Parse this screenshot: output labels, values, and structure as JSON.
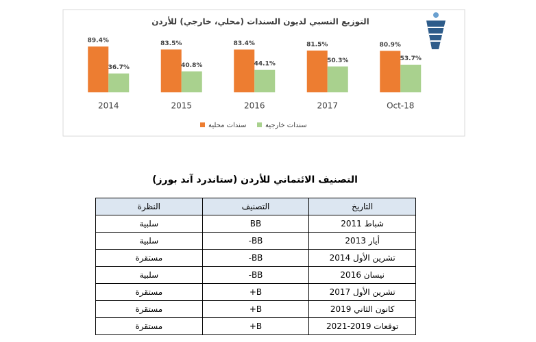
{
  "chart_data": {
    "type": "bar",
    "title": "التوزيع النسبي لديون السندات (محلي، خارجي) للأردن",
    "categories": [
      "2014",
      "2015",
      "2016",
      "2017",
      "Oct-18"
    ],
    "series": [
      {
        "name": "سندات محلية",
        "color": "#ED7D31",
        "values": [
          89.4,
          83.5,
          83.4,
          81.5,
          80.9
        ],
        "value_labels": [
          "89.4%",
          "83.5%",
          "83.4%",
          "81.5%",
          "80.9%"
        ]
      },
      {
        "name": "سندات خارجية",
        "color": "#A9D18E",
        "values": [
          36.7,
          40.8,
          44.1,
          50.3,
          53.7
        ],
        "value_labels": [
          "36.7%",
          "40.8%",
          "44.1%",
          "50.3%",
          "53.7%"
        ]
      }
    ]
  },
  "table": {
    "title": "التصنيف الائتماني للأردن (ستاندرد آند بورز)",
    "header": [
      "التاريخ",
      "التصنيف",
      "النظرة"
    ],
    "rows": [
      [
        "شباط 2011",
        "BB",
        "سلبية"
      ],
      [
        "أيار 2013",
        "BB-",
        "سلبية"
      ],
      [
        "تشرين الأول 2014",
        "BB-",
        "مستقرة"
      ],
      [
        "نيسان 2016",
        "BB-",
        "سلبية"
      ],
      [
        "تشرين الأول 2017",
        "B+",
        "مستقرة"
      ],
      [
        "كانون الثاني 2019",
        "B+",
        "مستقرة"
      ],
      [
        "توقعات 2019-2021",
        "B+",
        "مستقرة"
      ]
    ]
  }
}
